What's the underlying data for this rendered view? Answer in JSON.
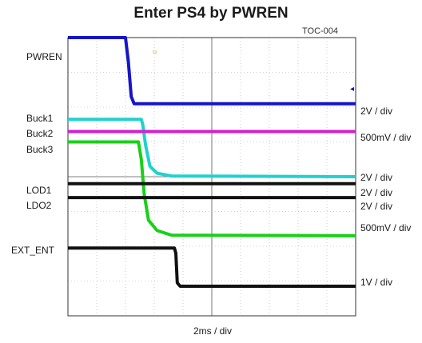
{
  "chart_data": {
    "type": "line",
    "title": "Enter PS4 by PWREN",
    "figure_id": "TOC-004",
    "xlabel": "2ms / div",
    "x_divisions": 10,
    "y_divisions": 8,
    "grid": true,
    "x_unit": "div",
    "series": [
      {
        "name": "PWREN",
        "scale": "2V / div",
        "color": "#1515c8",
        "points": [
          [
            0,
            8.0
          ],
          [
            2.0,
            8.0
          ],
          [
            2.1,
            7.3
          ],
          [
            2.2,
            6.3
          ],
          [
            2.3,
            6.1
          ],
          [
            10,
            6.1
          ]
        ]
      },
      {
        "name": "Buck1",
        "scale": "2V / div",
        "color": "#22d0d0",
        "points": [
          [
            0,
            5.65
          ],
          [
            2.55,
            5.65
          ],
          [
            2.6,
            5.5
          ],
          [
            2.7,
            4.9
          ],
          [
            2.85,
            4.3
          ],
          [
            3.1,
            4.1
          ],
          [
            3.6,
            4.02
          ],
          [
            10,
            4.0
          ]
        ]
      },
      {
        "name": "Buck2",
        "scale": "500mV / div",
        "color": "#d020d0",
        "points": [
          [
            0,
            5.3
          ],
          [
            10,
            5.3
          ]
        ]
      },
      {
        "name": "Buck3",
        "scale": "500mV / div",
        "color": "#18d018",
        "points": [
          [
            0,
            5.0
          ],
          [
            2.45,
            5.0
          ],
          [
            2.55,
            4.5
          ],
          [
            2.65,
            3.5
          ],
          [
            2.8,
            2.75
          ],
          [
            3.1,
            2.45
          ],
          [
            3.6,
            2.32
          ],
          [
            10,
            2.3
          ]
        ]
      },
      {
        "name": "LOD1",
        "scale": "2V / div",
        "color": "#111111",
        "points": [
          [
            0,
            3.8
          ],
          [
            10,
            3.8
          ]
        ]
      },
      {
        "name": "LDO2",
        "scale": "2V / div",
        "color": "#111111",
        "points": [
          [
            0,
            3.4
          ],
          [
            10,
            3.4
          ]
        ]
      },
      {
        "name": "EXT_ENT",
        "scale": "1V / div",
        "color": "#111111",
        "points": [
          [
            0,
            1.95
          ],
          [
            3.7,
            1.95
          ],
          [
            3.75,
            1.8
          ],
          [
            3.8,
            0.95
          ],
          [
            3.9,
            0.85
          ],
          [
            10,
            0.85
          ]
        ]
      }
    ]
  },
  "labels": {
    "pwren": "PWREN",
    "buck1": "Buck1",
    "buck2": "Buck2",
    "buck3": "Buck3",
    "lod1": "LOD1",
    "ldo2": "LDO2",
    "ext_ent": "EXT_ENT"
  },
  "scales": {
    "pwren": "2V / div",
    "buck2": "500mV / div",
    "buck1": "2V / div",
    "lod1": "2V / div",
    "ldo2": "2V / div",
    "buck3": "500mV / div",
    "ext_ent": "1V / div"
  },
  "markers": {
    "trigger_symbol": "ᵤ",
    "level_symbol": "◂"
  }
}
